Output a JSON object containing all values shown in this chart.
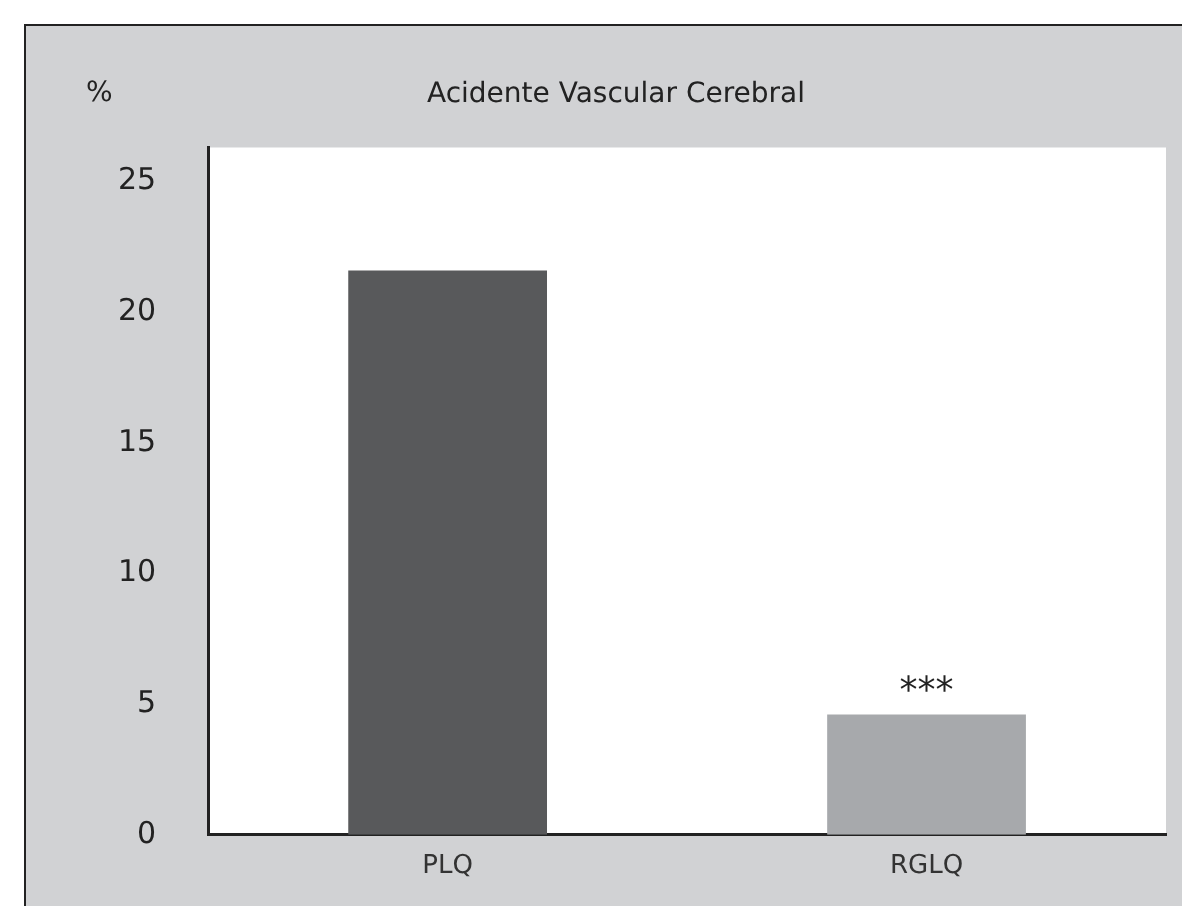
{
  "chart_data": {
    "type": "bar",
    "title": "Acidente Vascular Cerebral",
    "ylabel": "%",
    "categories": [
      "PLQ",
      "RGLQ"
    ],
    "values": [
      21.6,
      4.6
    ],
    "colors": [
      "#58595b",
      "#a7a9ac"
    ],
    "ylim": [
      0,
      26.3
    ],
    "yticks": [
      0,
      5,
      10,
      15,
      20,
      25
    ],
    "grid": false,
    "legend": false,
    "annotations": [
      {
        "text": "***",
        "x": "RGLQ",
        "y": 4.6
      }
    ]
  }
}
